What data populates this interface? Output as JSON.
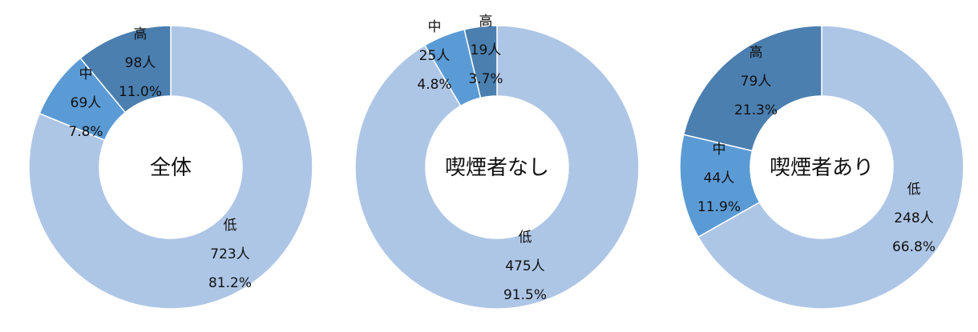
{
  "chart_data": [
    {
      "type": "pie",
      "title": "全体",
      "categories": [
        "低",
        "中",
        "高"
      ],
      "values": [
        81.2,
        7.8,
        11.0
      ],
      "counts": [
        "723人",
        "69人",
        "98人"
      ],
      "percent_labels": [
        "81.2%",
        "7.8%",
        "11.0%"
      ]
    },
    {
      "type": "pie",
      "title": "喫煙者なし",
      "categories": [
        "低",
        "中",
        "高"
      ],
      "values": [
        91.5,
        4.8,
        3.7
      ],
      "counts": [
        "475人",
        "25人",
        "19人"
      ],
      "percent_labels": [
        "91.5%",
        "4.8%",
        "3.7%"
      ]
    },
    {
      "type": "pie",
      "title": "喫煙者あり",
      "categories": [
        "低",
        "中",
        "高"
      ],
      "values": [
        66.8,
        11.9,
        21.3
      ],
      "counts": [
        "248人",
        "44人",
        "79人"
      ],
      "percent_labels": [
        "66.8%",
        "11.9%",
        "21.3%"
      ]
    }
  ],
  "colors": {
    "低": "#aec6e6",
    "中": "#5b9bd5",
    "高": "#4a7fb0"
  }
}
